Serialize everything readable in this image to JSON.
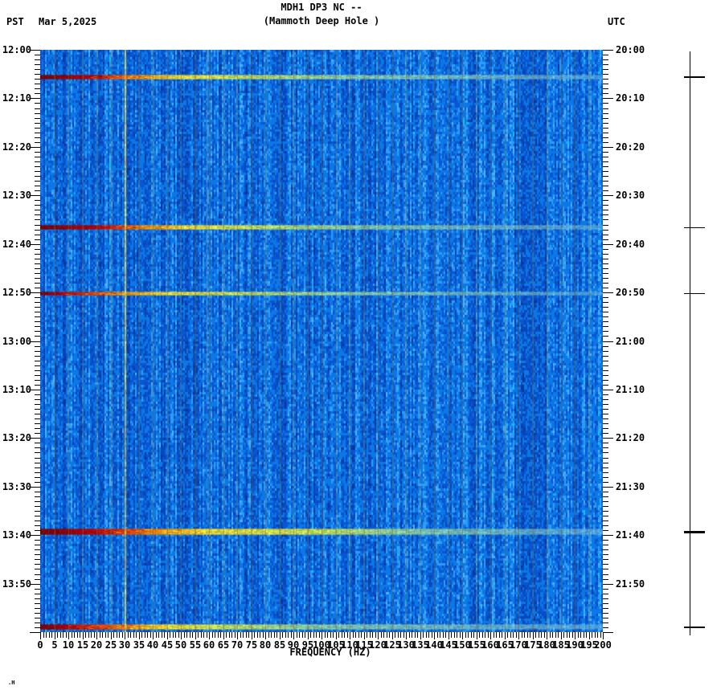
{
  "header": {
    "timezone_left": "PST",
    "date": "Mar 5,2025",
    "title": "MDH1 DP3 NC --",
    "subtitle": "(Mammoth Deep Hole )",
    "timezone_right": "UTC"
  },
  "corner_mark": ".H",
  "x_axis": {
    "label": "FREQUENCY (HZ)",
    "min_hz": 0,
    "max_hz": 200,
    "major_step_hz": 5,
    "minor_step_hz": 1,
    "tick_labels": [
      "0",
      "5",
      "10",
      "15",
      "20",
      "25",
      "30",
      "35",
      "40",
      "45",
      "50",
      "55",
      "60",
      "65",
      "70",
      "75",
      "80",
      "85",
      "90",
      "95",
      "100",
      "105",
      "110",
      "115",
      "120",
      "125",
      "130",
      "135",
      "140",
      "145",
      "150",
      "155",
      "160",
      "165",
      "170",
      "175",
      "180",
      "185",
      "190",
      "195",
      "200"
    ]
  },
  "y_axis_left": {
    "timezone": "PST",
    "labels": [
      "12:00",
      "12:10",
      "12:20",
      "12:30",
      "12:40",
      "12:50",
      "13:00",
      "13:10",
      "13:20",
      "13:30",
      "13:40",
      "13:50"
    ],
    "major_step_min": 10,
    "minor_step_min": 1,
    "span_minutes": 120
  },
  "y_axis_right": {
    "timezone": "UTC",
    "labels": [
      "20:00",
      "20:10",
      "20:20",
      "20:30",
      "20:40",
      "20:50",
      "21:00",
      "21:10",
      "21:20",
      "21:30",
      "21:40",
      "21:50"
    ],
    "major_step_min": 10,
    "minor_step_min": 1,
    "span_minutes": 120
  },
  "chart_data": {
    "type": "heatmap",
    "subtype": "spectrogram",
    "title": "MDH1 DP3 NC --",
    "subtitle": "(Mammoth Deep Hole )",
    "xlabel": "FREQUENCY (HZ)",
    "x_range_hz": [
      0,
      200
    ],
    "time_start_pst": "12:00",
    "time_end_pst": "14:00",
    "time_start_utc": "20:00",
    "time_end_utc": "22:00",
    "grid_hz_step": 5,
    "grid_color": "#69694b",
    "background_palette": [
      "#0536a0",
      "#0846b4",
      "#0a55d2",
      "#0a78e6",
      "#2f9cf5",
      "#4fb2fc",
      "#15c2f2"
    ],
    "event_gradient_colors": [
      "#780000",
      "#b40000",
      "#e83800",
      "#f58400",
      "#f0dc30",
      "#c2dc55",
      "#96d4a0",
      "#7cc2dc"
    ],
    "persistent_lines": [
      {
        "hz": 30,
        "color": "#d8e060",
        "strength": "strong"
      },
      {
        "hz": 59,
        "color": "#bcd9b0",
        "strength": "faint"
      }
    ],
    "events": [
      {
        "time_pst": "12:05",
        "time_utc": "20:05",
        "minute": 5.6,
        "thickness_px": 6,
        "marker_weight": 2,
        "stops_hz": [
          17,
          25,
          33,
          48,
          70,
          110
        ]
      },
      {
        "time_pst": "12:36",
        "time_utc": "20:36",
        "minute": 36.5,
        "thickness_px": 6,
        "marker_weight": 1,
        "stops_hz": [
          20,
          27,
          36,
          52,
          75,
          115
        ]
      },
      {
        "time_pst": "12:50",
        "time_utc": "20:50",
        "minute": 50.2,
        "thickness_px": 5,
        "marker_weight": 1,
        "stops_hz": [
          8,
          16,
          26,
          45,
          70,
          110
        ]
      },
      {
        "time_pst": "13:39",
        "time_utc": "21:39",
        "minute": 99.3,
        "thickness_px": 8,
        "marker_weight": 3,
        "stops_hz": [
          18,
          30,
          40,
          58,
          100,
          135
        ]
      },
      {
        "time_pst": "13:59",
        "time_utc": "21:59",
        "minute": 119.0,
        "thickness_px": 7,
        "marker_weight": 2,
        "stops_hz": [
          9,
          20,
          30,
          45,
          65,
          100
        ]
      }
    ]
  }
}
